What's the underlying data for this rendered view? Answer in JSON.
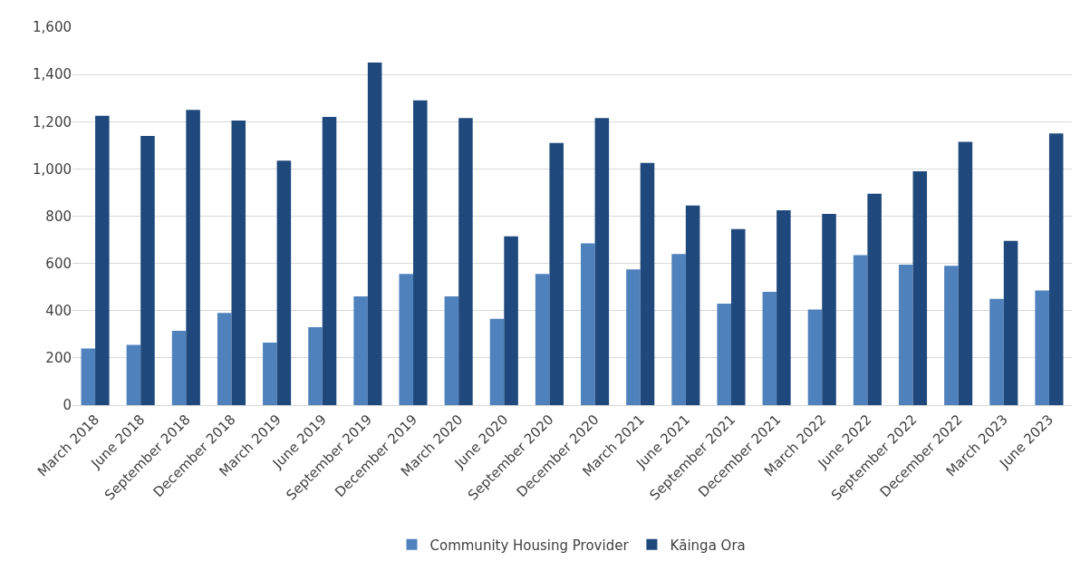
{
  "chart_data": {
    "type": "bar",
    "categories": [
      "March 2018",
      "June 2018",
      "September 2018",
      "December 2018",
      "March 2019",
      "June 2019",
      "September 2019",
      "December 2019",
      "March 2020",
      "June 2020",
      "September 2020",
      "December 2020",
      "March 2021",
      "June 2021",
      "September 2021",
      "December 2021",
      "March 2022",
      "June 2022",
      "September 2022",
      "December 2022",
      "March 2023",
      "June 2023"
    ],
    "series": [
      {
        "name": "Community Housing Provider",
        "color": "#4f81bd",
        "values": [
          240,
          255,
          315,
          390,
          265,
          330,
          460,
          555,
          460,
          365,
          555,
          685,
          575,
          640,
          430,
          480,
          405,
          635,
          595,
          590,
          450,
          485
        ]
      },
      {
        "name": "Kāinga Ora",
        "color": "#1f497d",
        "values": [
          1225,
          1140,
          1250,
          1205,
          1035,
          1220,
          1450,
          1290,
          1215,
          715,
          1110,
          1215,
          1025,
          845,
          745,
          825,
          810,
          895,
          990,
          1115,
          695,
          1150
        ]
      }
    ],
    "ylim": [
      0,
      1600
    ],
    "yticks": [
      {
        "value": 0,
        "label": "0"
      },
      {
        "value": 200,
        "label": "200"
      },
      {
        "value": 400,
        "label": "400"
      },
      {
        "value": 600,
        "label": "600"
      },
      {
        "value": 800,
        "label": "800"
      },
      {
        "value": 1000,
        "label": "1,000"
      },
      {
        "value": 1200,
        "label": "1,200"
      },
      {
        "value": 1400,
        "label": "1,400"
      },
      {
        "value": 1600,
        "label": "1,600"
      }
    ],
    "grid": "y",
    "legend": "bottom"
  }
}
